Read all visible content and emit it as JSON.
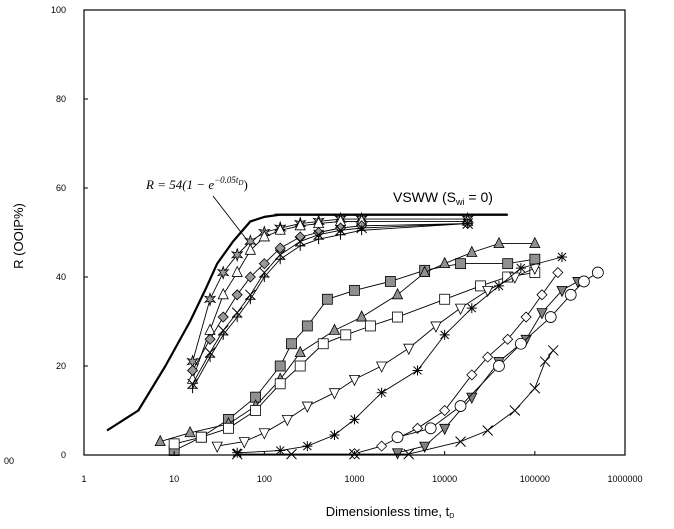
{
  "chart_data": {
    "type": "scatter",
    "xlabel": "Dimensionless time, t",
    "xlabel_sub": "D",
    "ylabel": "R  (OOIP%)",
    "xscale": "log",
    "xlim": [
      1,
      1000000
    ],
    "ylim": [
      0,
      100
    ],
    "x_ticks": [
      1,
      10,
      100,
      1000,
      10000,
      100000,
      1000000
    ],
    "x_tick_labels": [
      "1",
      "10",
      "100",
      "1000",
      "10000",
      "100000",
      "1000000"
    ],
    "y_ticks": [
      0,
      20,
      40,
      60,
      80,
      100
    ],
    "y_tick_labels": [
      "0",
      "20",
      "40",
      "60",
      "80",
      "100"
    ],
    "edge_label": "00",
    "grid": false,
    "annotations": {
      "formula": {
        "lhs": "R = 54(1 − e",
        "exponent": "−0.05t",
        "exponent_sub": "D",
        "rhs": ")"
      },
      "vsww": {
        "main": "VSWW (S",
        "sub": "wi",
        "rest": " = 0)"
      }
    },
    "curves": [
      {
        "role": "model-fit",
        "points": [
          [
            1.8,
            5.5
          ],
          [
            4,
            10
          ],
          [
            8,
            20
          ],
          [
            15,
            30
          ],
          [
            22,
            37
          ],
          [
            30,
            43
          ],
          [
            45,
            48
          ],
          [
            70,
            52.5
          ],
          [
            100,
            53.5
          ],
          [
            150,
            54
          ],
          [
            1000,
            54
          ],
          [
            50000,
            54
          ]
        ]
      },
      {
        "role": "vsww",
        "points": [
          [
            130,
            54
          ],
          [
            50000,
            54
          ]
        ]
      }
    ],
    "series": [
      {
        "marker": "star6",
        "fill": "#9a9a9a",
        "points": [
          [
            16,
            21
          ],
          [
            25,
            35
          ],
          [
            35,
            41
          ],
          [
            50,
            45
          ],
          [
            70,
            48
          ],
          [
            100,
            50
          ],
          [
            150,
            51
          ],
          [
            250,
            52
          ],
          [
            400,
            52.5
          ],
          [
            700,
            53
          ],
          [
            1200,
            53
          ],
          [
            18000,
            53
          ]
        ]
      },
      {
        "marker": "triangle",
        "fill": "#ffffff",
        "points": [
          [
            16,
            17
          ],
          [
            25,
            28
          ],
          [
            35,
            36
          ],
          [
            50,
            41
          ],
          [
            70,
            46
          ],
          [
            100,
            49
          ],
          [
            150,
            50.5
          ],
          [
            250,
            51.5
          ],
          [
            400,
            52
          ],
          [
            700,
            52.5
          ],
          [
            1200,
            52.5
          ],
          [
            18000,
            52.5
          ]
        ]
      },
      {
        "marker": "diamond",
        "fill": "#9a9a9a",
        "points": [
          [
            16,
            19
          ],
          [
            25,
            26
          ],
          [
            35,
            31
          ],
          [
            50,
            36
          ],
          [
            70,
            40
          ],
          [
            100,
            43
          ],
          [
            150,
            46.5
          ],
          [
            250,
            49
          ],
          [
            400,
            50
          ],
          [
            700,
            51
          ],
          [
            1200,
            51.5
          ],
          [
            18000,
            52
          ]
        ]
      },
      {
        "marker": "x",
        "fill": "none",
        "points": [
          [
            16,
            16
          ],
          [
            25,
            23
          ],
          [
            35,
            28
          ],
          [
            50,
            32
          ],
          [
            70,
            36
          ],
          [
            100,
            41
          ],
          [
            150,
            45
          ],
          [
            250,
            48
          ],
          [
            400,
            49.5
          ],
          [
            700,
            50.5
          ],
          [
            1200,
            51
          ],
          [
            18000,
            52
          ]
        ]
      },
      {
        "marker": "plus",
        "fill": "none",
        "points": [
          [
            16,
            15
          ],
          [
            25,
            22
          ],
          [
            35,
            27
          ],
          [
            50,
            31
          ],
          [
            70,
            35
          ],
          [
            100,
            40
          ],
          [
            150,
            44
          ],
          [
            250,
            47
          ],
          [
            400,
            48.5
          ],
          [
            700,
            49.5
          ],
          [
            1200,
            50.5
          ],
          [
            18000,
            52
          ]
        ]
      },
      {
        "marker": "square",
        "fill": "#909090",
        "points": [
          [
            10,
            1
          ],
          [
            20,
            4
          ],
          [
            40,
            8
          ],
          [
            80,
            13
          ],
          [
            150,
            20
          ],
          [
            200,
            25
          ],
          [
            300,
            29
          ],
          [
            500,
            35
          ],
          [
            1000,
            37
          ],
          [
            2500,
            39
          ],
          [
            6000,
            41.5
          ],
          [
            15000,
            43
          ],
          [
            50000,
            43
          ],
          [
            100000,
            44
          ]
        ]
      },
      {
        "marker": "triangle",
        "fill": "#909090",
        "points": [
          [
            7,
            3
          ],
          [
            15,
            5
          ],
          [
            40,
            7
          ],
          [
            80,
            11
          ],
          [
            150,
            17
          ],
          [
            250,
            23
          ],
          [
            600,
            28
          ],
          [
            1200,
            31
          ],
          [
            3000,
            36
          ],
          [
            6000,
            41
          ],
          [
            10000,
            43
          ],
          [
            20000,
            45.5
          ],
          [
            40000,
            47.5
          ],
          [
            100000,
            47.5
          ]
        ]
      },
      {
        "marker": "square",
        "fill": "#ffffff",
        "points": [
          [
            10,
            2.5
          ],
          [
            20,
            4
          ],
          [
            40,
            6
          ],
          [
            80,
            10
          ],
          [
            150,
            16
          ],
          [
            250,
            20
          ],
          [
            450,
            25
          ],
          [
            800,
            27
          ],
          [
            1500,
            29
          ],
          [
            3000,
            31
          ],
          [
            10000,
            35
          ],
          [
            25000,
            38
          ],
          [
            50000,
            40
          ],
          [
            100000,
            41
          ]
        ]
      },
      {
        "marker": "triangle-down",
        "fill": "#ffffff",
        "points": [
          [
            30,
            2
          ],
          [
            60,
            3
          ],
          [
            100,
            5
          ],
          [
            180,
            8
          ],
          [
            300,
            11
          ],
          [
            600,
            14
          ],
          [
            1000,
            17
          ],
          [
            2000,
            20
          ],
          [
            4000,
            24
          ],
          [
            8000,
            29
          ],
          [
            15000,
            33
          ],
          [
            30000,
            37
          ],
          [
            60000,
            40
          ],
          [
            100000,
            42
          ]
        ]
      },
      {
        "marker": "star",
        "fill": "none",
        "points": [
          [
            50,
            0.5
          ],
          [
            150,
            1
          ],
          [
            300,
            2
          ],
          [
            600,
            4.5
          ],
          [
            1000,
            8
          ],
          [
            2000,
            14
          ],
          [
            5000,
            19
          ],
          [
            10000,
            27
          ],
          [
            20000,
            33
          ],
          [
            40000,
            38
          ],
          [
            70000,
            42
          ],
          [
            200000,
            44.5
          ]
        ]
      },
      {
        "marker": "diamond",
        "fill": "#ffffff",
        "points": [
          [
            1000,
            0.3
          ],
          [
            2000,
            2
          ],
          [
            5000,
            6
          ],
          [
            10000,
            10
          ],
          [
            20000,
            18
          ],
          [
            30000,
            22
          ],
          [
            50000,
            26
          ],
          [
            80000,
            31
          ],
          [
            120000,
            36
          ],
          [
            180000,
            41
          ]
        ]
      },
      {
        "marker": "triangle-down",
        "fill": "#808080",
        "points": [
          [
            3000,
            0.5
          ],
          [
            6000,
            2
          ],
          [
            10000,
            6
          ],
          [
            20000,
            13
          ],
          [
            40000,
            21
          ],
          [
            80000,
            26
          ],
          [
            120000,
            32
          ],
          [
            200000,
            37
          ],
          [
            300000,
            39
          ]
        ]
      },
      {
        "marker": "circle",
        "fill": "#ffffff",
        "points": [
          [
            3000,
            4
          ],
          [
            7000,
            6
          ],
          [
            15000,
            11
          ],
          [
            40000,
            20
          ],
          [
            70000,
            25
          ],
          [
            150000,
            31
          ],
          [
            250000,
            36
          ],
          [
            350000,
            39
          ],
          [
            500000,
            41
          ]
        ]
      },
      {
        "marker": "x",
        "fill": "none",
        "points": [
          [
            50,
            0.2
          ],
          [
            200,
            0.2
          ],
          [
            1000,
            0.2
          ],
          [
            4000,
            0.2
          ],
          [
            15000,
            3
          ],
          [
            30000,
            5.5
          ],
          [
            60000,
            10
          ],
          [
            100000,
            15
          ],
          [
            130000,
            21
          ],
          [
            160000,
            23.5
          ]
        ]
      }
    ]
  }
}
